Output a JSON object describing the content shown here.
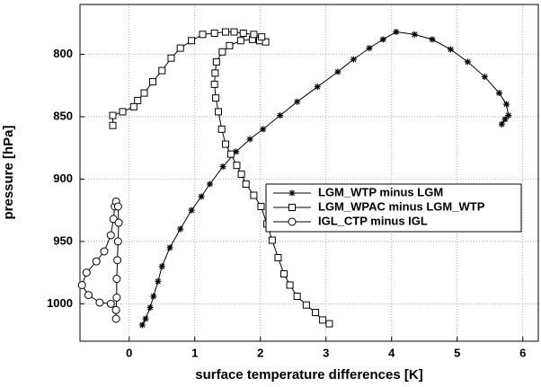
{
  "chart_data": {
    "type": "line",
    "x_label": "surface temperature differences [K]",
    "y_label": "pressure [hPa]",
    "xlim": [
      -0.75,
      6.25
    ],
    "xticks": [
      0,
      1,
      2,
      3,
      4,
      5,
      6
    ],
    "ylim": [
      1030,
      760
    ],
    "yticks": [
      800,
      850,
      900,
      950,
      1000
    ],
    "grid": true,
    "legend": "right",
    "series": [
      {
        "name": "LGM_WTP minus LGM",
        "color": "#000000",
        "marker": "asterisk",
        "x": [
          0.2,
          0.25,
          0.32,
          0.37,
          0.44,
          0.5,
          0.62,
          0.78,
          0.95,
          1.1,
          1.23,
          1.43,
          1.63,
          1.84,
          2.04,
          2.3,
          2.56,
          2.87,
          3.18,
          3.42,
          3.66,
          3.87,
          4.07,
          4.35,
          4.62,
          4.9,
          5.16,
          5.42,
          5.64,
          5.75,
          5.78,
          5.73,
          5.68
        ],
        "y": [
          1017,
          1012,
          1003,
          994,
          982,
          970,
          955,
          940,
          925,
          914,
          904,
          890,
          878,
          868,
          860,
          849,
          838,
          826,
          814,
          804,
          795,
          788,
          782,
          784,
          788,
          796,
          806,
          818,
          831,
          840,
          849,
          852,
          856
        ]
      },
      {
        "name": "LGM_WPAC minus LGM_WTP",
        "color": "#000000",
        "marker": "square",
        "x": [
          3.05,
          2.95,
          2.84,
          2.7,
          2.56,
          2.45,
          2.36,
          2.27,
          2.18,
          2.1,
          2.01,
          1.9,
          1.78,
          1.71,
          1.64,
          1.55,
          1.47,
          1.41,
          1.36,
          1.32,
          1.3,
          1.31,
          1.33,
          1.42,
          1.53,
          1.7,
          1.88,
          1.99,
          2.08,
          2.02,
          1.9,
          1.74,
          1.6,
          1.47,
          1.3,
          1.12,
          0.95,
          0.78,
          0.64,
          0.5,
          0.36,
          0.23,
          0.13,
          0.07,
          -0.1,
          -0.25,
          -0.25
        ],
        "y": [
          1016,
          1013,
          1007,
          1001,
          994,
          985,
          976,
          963,
          949,
          936,
          922,
          913,
          904,
          896,
          889,
          880,
          872,
          860,
          846,
          835,
          824,
          815,
          806,
          798,
          793,
          789,
          788,
          789,
          790,
          786,
          784,
          783,
          782,
          782,
          783,
          784,
          789,
          795,
          803,
          813,
          822,
          831,
          837,
          842,
          846,
          849,
          857
        ]
      },
      {
        "name": "IGL_CTP minus IGL",
        "color": "#000000",
        "marker": "circle",
        "x": [
          -0.28,
          -0.45,
          -0.62,
          -0.72,
          -0.65,
          -0.5,
          -0.38,
          -0.28,
          -0.24,
          -0.22,
          -0.2,
          -0.17,
          -0.16,
          -0.17,
          -0.18,
          -0.19,
          -0.19,
          -0.2,
          -0.2
        ],
        "y": [
          1000,
          999,
          993,
          985,
          975,
          966,
          958,
          945,
          932,
          922,
          918,
          922,
          935,
          950,
          965,
          980,
          995,
          1005,
          1012
        ]
      }
    ]
  }
}
